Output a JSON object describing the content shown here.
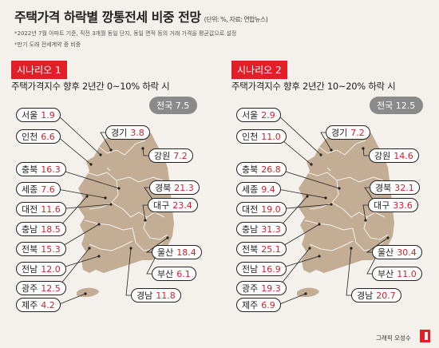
{
  "title": "주택가격 하락별 깡통전세 비중 전망",
  "unit": "(단위: %, 자료: 연합뉴스)",
  "notes": [
    "*2022년 7월 아파트 기준, 직전 3개월 동일 단지, 동일 면적 등의 거래 가격을 평균값으로 설정",
    "*만기 도래 전세계약 중 비중"
  ],
  "colors": {
    "accent": "#e21f26",
    "map_fill": "#c3ad95",
    "badge_gray": "#8a8a8a"
  },
  "scenarios": [
    {
      "badge": "시나리오 1",
      "description": "주택가격지수 향후 2년간 0~10% 하락 시",
      "national": "전국 7.5",
      "regions": {
        "seoul": {
          "name": "서울",
          "value": "1.9"
        },
        "incheon": {
          "name": "인천",
          "value": "6.6"
        },
        "gyeonggi": {
          "name": "경기",
          "value": "3.8"
        },
        "gangwon": {
          "name": "강원",
          "value": "7.2"
        },
        "chungbuk": {
          "name": "충북",
          "value": "16.3"
        },
        "sejong": {
          "name": "세종",
          "value": "7.6"
        },
        "gyeongbuk": {
          "name": "경북",
          "value": "21.3"
        },
        "daejeon": {
          "name": "대전",
          "value": "11.6"
        },
        "daegu": {
          "name": "대구",
          "value": "23.4"
        },
        "chungnam": {
          "name": "충남",
          "value": "18.5"
        },
        "jeonbuk": {
          "name": "전북",
          "value": "15.3"
        },
        "ulsan": {
          "name": "울산",
          "value": "18.4"
        },
        "jeonnam": {
          "name": "전남",
          "value": "12.0"
        },
        "busan": {
          "name": "부산",
          "value": "6.1"
        },
        "gwangju": {
          "name": "광주",
          "value": "12.5"
        },
        "gyeongnam": {
          "name": "경남",
          "value": "11.8"
        },
        "jeju": {
          "name": "제주",
          "value": "4.2"
        }
      }
    },
    {
      "badge": "시나리오 2",
      "description": "주택가격지수 향후 2년간 10~20% 하락 시",
      "national": "전국 12.5",
      "regions": {
        "seoul": {
          "name": "서울",
          "value": "2.9"
        },
        "incheon": {
          "name": "인천",
          "value": "11.0"
        },
        "gyeonggi": {
          "name": "경기",
          "value": "7.2"
        },
        "gangwon": {
          "name": "강원",
          "value": "14.6"
        },
        "chungbuk": {
          "name": "충북",
          "value": "26.8"
        },
        "sejong": {
          "name": "세종",
          "value": "9.4"
        },
        "gyeongbuk": {
          "name": "경북",
          "value": "32.1"
        },
        "daejeon": {
          "name": "대전",
          "value": "19.0"
        },
        "daegu": {
          "name": "대구",
          "value": "33.6"
        },
        "chungnam": {
          "name": "충남",
          "value": "31.3"
        },
        "jeonbuk": {
          "name": "전북",
          "value": "25.1"
        },
        "ulsan": {
          "name": "울산",
          "value": "30.4"
        },
        "jeonnam": {
          "name": "전남",
          "value": "16.9"
        },
        "busan": {
          "name": "부산",
          "value": "11.0"
        },
        "gwangju": {
          "name": "광주",
          "value": "19.3"
        },
        "gyeongnam": {
          "name": "경남",
          "value": "20.7"
        },
        "jeju": {
          "name": "제주",
          "value": "6.9"
        }
      }
    }
  ],
  "credit": "그래픽 오성수",
  "logo_icon": "publisher-logo-icon"
}
